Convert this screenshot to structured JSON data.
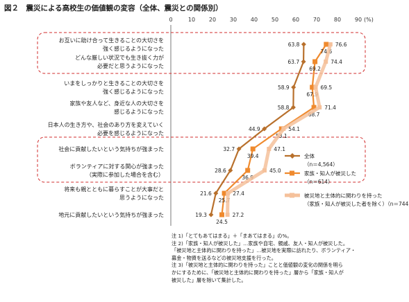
{
  "title": "図２　震災による高校生の価値観の変容（全体、震災との関係別）",
  "chart_data": {
    "type": "line",
    "orientation": "horizontal",
    "xlim": [
      0,
      90
    ],
    "xticks": [
      "0",
      "10",
      "20",
      "30",
      "40",
      "50",
      "60",
      "70",
      "80",
      "90"
    ],
    "xunit": "(%)",
    "categories": [
      [
        "お互いに助け合って生きることの大切さを",
        "強く感じるようになった"
      ],
      [
        "どんな厳しい状況でも生き抜く力が",
        "必要だと思うようになった"
      ],
      [
        "いまをしっかりと生きることの大切さを",
        "強く感じるようになった"
      ],
      [
        "家族や友人など、身近な人の大切さを",
        "感じるようになった"
      ],
      [
        "日本人の生き方や、社会のあり方を変えていく",
        "必要を感じるようになった"
      ],
      [
        "社会に貢献したいという気持ちが強まった"
      ],
      [
        "ボランティアに対する関心が強まった",
        "（実際に参加した場合を含む）"
      ],
      [
        "将来も親とともに暮らすことが大事だと",
        "思うようになった"
      ],
      [
        "地元に貢献したいという気持ちが強まった"
      ]
    ],
    "series": [
      {
        "name": "全体",
        "n": "（n＝4,564）",
        "color": "#b8702c",
        "values": [
          63.8,
          63.7,
          58.9,
          58.8,
          44.9,
          32.7,
          28.6,
          21.6,
          19.3
        ]
      },
      {
        "name": "家族・知人が被災した",
        "n": "（n＝614）",
        "color": "#ef8a2e",
        "values": [
          74.6,
          69.2,
          67.9,
          68.7,
          53.1,
          39.4,
          36.9,
          25.7,
          24.5
        ]
      },
      {
        "name": "被災地と主体的に関わりを持った",
        "n": "（家族・知人が被災した者を除く）（n＝744）",
        "color": "#f5c19b",
        "values": [
          76.6,
          74.4,
          69.5,
          71.4,
          54.1,
          47.1,
          45.0,
          27.4,
          27.2
        ]
      }
    ],
    "highlight_groups": [
      [
        0,
        1
      ],
      [
        5,
        6
      ]
    ]
  },
  "notes": [
    "注 1)「とてもあてはまる」＋「まあてはまる」の%。",
    "注 2)「家族・知人が被災した」…家族や自宅、親戚、友人・知人が被災した。",
    "「被災地と主体的に関わりを持った」…被災地を実際に訪れたり、ボランティア・",
    "募金・物資を送るなどの被災地支援を行った。",
    "注 3)「被災地と主体的に関わりを持った」ことと価値観の変化の関係を明ら",
    "かにするために、「被災地と主体的に関わりを持った」層から「家族・知人が",
    "被災した」層を除いて集計した。"
  ]
}
